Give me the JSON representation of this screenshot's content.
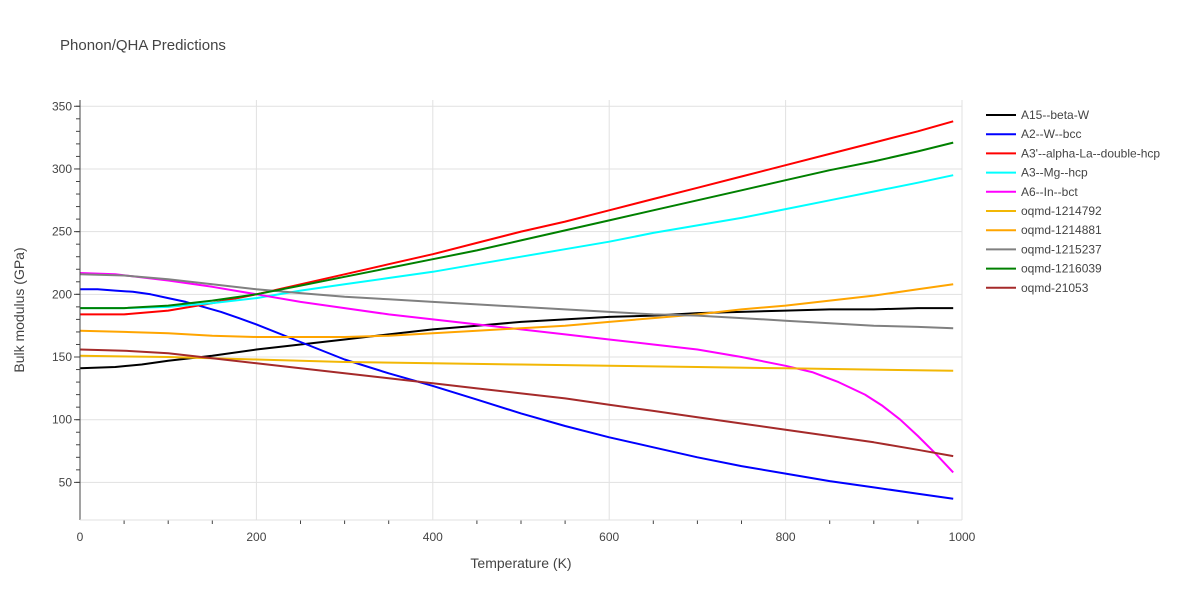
{
  "chart_data": {
    "type": "line",
    "title": "Phonon/QHA Predictions",
    "xlabel": "Temperature (K)",
    "ylabel": "Bulk modulus (GPa)",
    "xlim": [
      0,
      1000
    ],
    "ylim": [
      20,
      355
    ],
    "xticks": [
      0,
      200,
      400,
      600,
      800,
      1000
    ],
    "yticks": [
      50,
      100,
      150,
      200,
      250,
      300,
      350
    ],
    "grid": true,
    "legend_position": "right",
    "series": [
      {
        "name": "A15--beta-W",
        "color": "#000000",
        "x": [
          0,
          40,
          70,
          100,
          150,
          200,
          250,
          300,
          350,
          400,
          450,
          500,
          550,
          600,
          650,
          700,
          750,
          800,
          850,
          900,
          950,
          990
        ],
        "y": [
          141,
          142,
          144,
          147,
          151,
          156,
          160,
          164,
          168,
          172,
          175,
          178,
          180,
          182,
          183,
          185,
          186,
          187,
          188,
          188,
          189,
          189
        ]
      },
      {
        "name": "A2--W--bcc",
        "color": "#0000ff",
        "x": [
          0,
          20,
          40,
          60,
          80,
          100,
          120,
          140,
          160,
          180,
          200,
          250,
          300,
          350,
          400,
          450,
          500,
          550,
          600,
          650,
          700,
          750,
          800,
          850,
          900,
          950,
          990
        ],
        "y": [
          204,
          204,
          203,
          202,
          200,
          197,
          194,
          190,
          186,
          181,
          176,
          162,
          148,
          137,
          127,
          116,
          105,
          95,
          86,
          78,
          70,
          63,
          57,
          51,
          46,
          41,
          37
        ]
      },
      {
        "name": "A3'--alpha-La--double-hcp",
        "color": "#ff0000",
        "x": [
          0,
          50,
          100,
          150,
          200,
          250,
          300,
          350,
          400,
          450,
          500,
          550,
          600,
          650,
          700,
          750,
          800,
          850,
          900,
          950,
          990
        ],
        "y": [
          184,
          184,
          187,
          193,
          200,
          208,
          216,
          224,
          232,
          241,
          250,
          258,
          267,
          276,
          285,
          294,
          303,
          312,
          321,
          330,
          338
        ]
      },
      {
        "name": "A3--Mg--hcp",
        "color": "#00ffff",
        "x": [
          0,
          50,
          100,
          150,
          200,
          250,
          300,
          350,
          400,
          450,
          500,
          550,
          600,
          650,
          700,
          750,
          800,
          850,
          900,
          950,
          990
        ],
        "y": [
          189,
          189,
          190,
          193,
          197,
          203,
          208,
          213,
          218,
          224,
          230,
          236,
          242,
          249,
          255,
          261,
          268,
          275,
          282,
          289,
          295
        ]
      },
      {
        "name": "A6--In--bct",
        "color": "#ff00ff",
        "x": [
          0,
          40,
          100,
          150,
          200,
          250,
          300,
          350,
          400,
          450,
          500,
          550,
          600,
          650,
          700,
          750,
          800,
          830,
          860,
          890,
          910,
          930,
          950,
          970,
          990
        ],
        "y": [
          217,
          216,
          211,
          206,
          200,
          194,
          189,
          184,
          180,
          176,
          172,
          168,
          164,
          160,
          156,
          150,
          143,
          138,
          130,
          120,
          111,
          100,
          87,
          73,
          58
        ]
      },
      {
        "name": "oqmd-1214792",
        "color": "#f2b705",
        "x": [
          0,
          100,
          200,
          300,
          400,
          500,
          600,
          700,
          800,
          900,
          990
        ],
        "y": [
          151,
          150,
          148,
          146,
          145,
          144,
          143,
          142,
          141,
          140,
          139
        ]
      },
      {
        "name": "oqmd-1214881",
        "color": "#ffa500",
        "x": [
          0,
          50,
          100,
          150,
          200,
          250,
          300,
          350,
          400,
          450,
          500,
          550,
          600,
          650,
          700,
          750,
          800,
          850,
          900,
          950,
          990
        ],
        "y": [
          171,
          170,
          169,
          167,
          166,
          166,
          166,
          167,
          169,
          171,
          173,
          175,
          178,
          181,
          184,
          188,
          191,
          195,
          199,
          204,
          208
        ]
      },
      {
        "name": "oqmd-1215237",
        "color": "#808080",
        "x": [
          0,
          50,
          100,
          150,
          200,
          250,
          300,
          350,
          400,
          450,
          500,
          550,
          600,
          650,
          700,
          750,
          800,
          850,
          900,
          950,
          990
        ],
        "y": [
          216,
          215,
          212,
          208,
          204,
          201,
          198,
          196,
          194,
          192,
          190,
          188,
          186,
          184,
          183,
          181,
          179,
          177,
          175,
          174,
          173
        ]
      },
      {
        "name": "oqmd-1216039",
        "color": "#008000",
        "x": [
          0,
          50,
          100,
          150,
          200,
          250,
          300,
          350,
          400,
          450,
          500,
          550,
          600,
          650,
          700,
          750,
          800,
          850,
          900,
          950,
          990
        ],
        "y": [
          189,
          189,
          191,
          195,
          200,
          207,
          214,
          221,
          228,
          235,
          243,
          251,
          259,
          267,
          275,
          283,
          291,
          299,
          306,
          314,
          321
        ]
      },
      {
        "name": "oqmd-21053",
        "color": "#a52a2a",
        "x": [
          0,
          50,
          100,
          150,
          200,
          250,
          300,
          350,
          400,
          450,
          500,
          550,
          600,
          650,
          700,
          750,
          800,
          850,
          900,
          950,
          990
        ],
        "y": [
          156,
          155,
          153,
          149,
          145,
          141,
          137,
          133,
          129,
          125,
          121,
          117,
          112,
          107,
          102,
          97,
          92,
          87,
          82,
          76,
          71
        ]
      }
    ]
  }
}
